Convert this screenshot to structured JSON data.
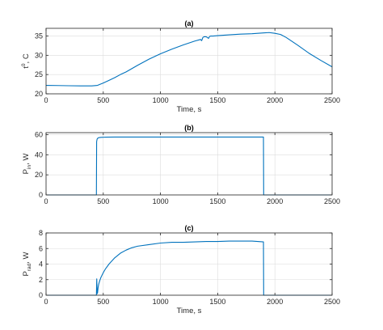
{
  "chart_data": [
    {
      "type": "line",
      "title": "(a)",
      "xlabel": "Time, s",
      "ylabel": {
        "main": "t",
        "sup": "0",
        "tail": ", C"
      },
      "xlim": [
        0,
        2500
      ],
      "ylim": [
        20,
        37
      ],
      "xticks": [
        0,
        500,
        1000,
        1500,
        2000,
        2500
      ],
      "yticks": [
        20,
        25,
        30,
        35
      ],
      "grid": true,
      "series_color": "#0072BD",
      "x": [
        0,
        100,
        200,
        300,
        400,
        450,
        500,
        550,
        600,
        650,
        700,
        800,
        900,
        1000,
        1100,
        1200,
        1300,
        1350,
        1360,
        1370,
        1380,
        1400,
        1420,
        1430,
        1440,
        1460,
        1500,
        1600,
        1700,
        1800,
        1900,
        1950,
        2000,
        2050,
        2100,
        2200,
        2300,
        2400,
        2500
      ],
      "y": [
        22.2,
        22.15,
        22.1,
        22.05,
        22.05,
        22.2,
        22.8,
        23.5,
        24.2,
        25.0,
        25.7,
        27.4,
        29.0,
        30.4,
        31.6,
        32.7,
        33.7,
        34.1,
        33.8,
        34.6,
        34.8,
        34.8,
        34.4,
        34.9,
        35.0,
        35.0,
        35.1,
        35.3,
        35.5,
        35.6,
        35.8,
        35.9,
        35.7,
        35.4,
        34.6,
        32.6,
        30.5,
        28.7,
        27.0
      ]
    },
    {
      "type": "line",
      "title": "(b)",
      "xlabel": "Time, s",
      "ylabel": {
        "main": "P",
        "sub": "in",
        "tail": ", W"
      },
      "xlim": [
        0,
        2500
      ],
      "ylim": [
        0,
        62
      ],
      "xticks": [
        0,
        500,
        1000,
        1500,
        2000,
        2500
      ],
      "yticks": [
        0,
        20,
        40,
        60
      ],
      "grid": true,
      "series_color": "#0072BD",
      "x": [
        0,
        440,
        442,
        446,
        452,
        460,
        480,
        520,
        600,
        800,
        1000,
        1200,
        1400,
        1600,
        1800,
        1900,
        1902,
        2500
      ],
      "y": [
        0,
        0,
        53,
        55.5,
        56.5,
        57,
        57.3,
        57.5,
        57.6,
        57.6,
        57.6,
        57.6,
        57.6,
        57.6,
        57.6,
        57.6,
        0,
        0
      ]
    },
    {
      "type": "line",
      "title": "(c)",
      "xlabel": "Time, s",
      "ylabel": {
        "main": "P",
        "sub": "rad",
        "tail": ", W"
      },
      "xlim": [
        0,
        2500
      ],
      "ylim": [
        0,
        8
      ],
      "xticks": [
        0,
        500,
        1000,
        1500,
        2000,
        2500
      ],
      "yticks": [
        0,
        2,
        4,
        6,
        8
      ],
      "grid": true,
      "series_color": "#0072BD",
      "x": [
        0,
        440,
        443,
        447,
        450,
        455,
        460,
        470,
        480,
        500,
        520,
        550,
        600,
        650,
        700,
        750,
        800,
        900,
        1000,
        1100,
        1200,
        1300,
        1400,
        1500,
        1600,
        1700,
        1800,
        1850,
        1900,
        1902,
        2500
      ],
      "y": [
        0,
        0,
        2.1,
        0.2,
        0.3,
        1.0,
        1.4,
        1.9,
        2.3,
        2.9,
        3.4,
        4.0,
        4.8,
        5.4,
        5.8,
        6.1,
        6.3,
        6.5,
        6.7,
        6.8,
        6.8,
        6.85,
        6.9,
        6.9,
        6.95,
        6.95,
        6.95,
        6.9,
        6.85,
        0,
        0
      ]
    }
  ]
}
